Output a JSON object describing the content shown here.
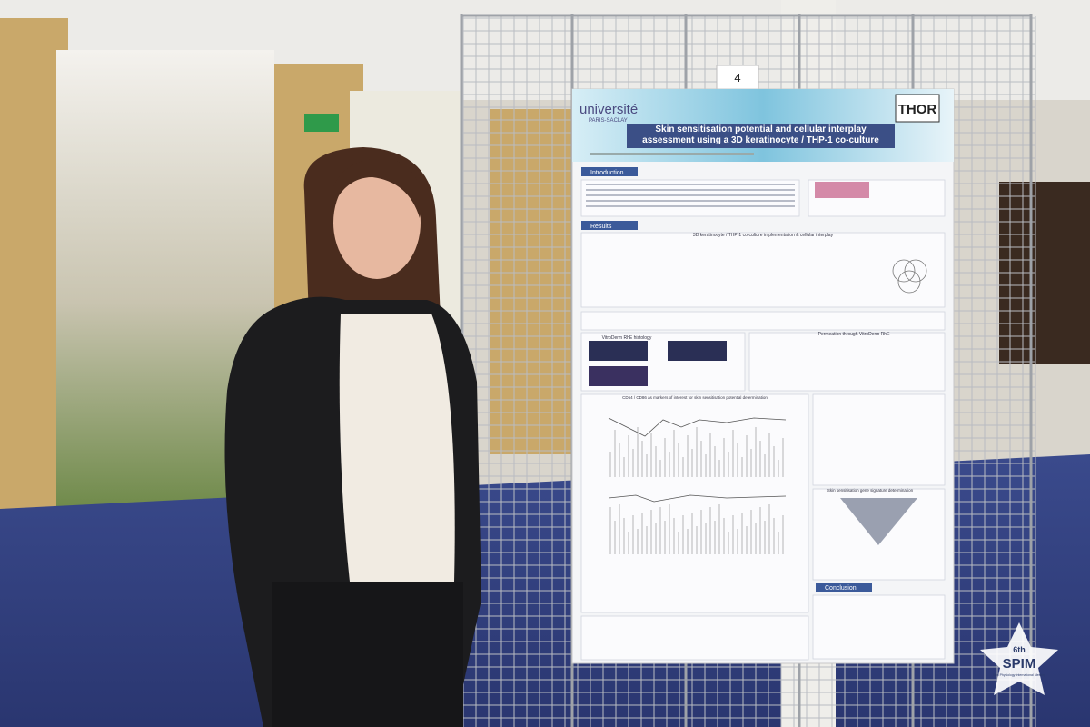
{
  "board_number": "4",
  "poster": {
    "logo_left": "université",
    "logo_left_sub": "PARIS-SACLAY",
    "logo_right": "THOR",
    "title": "Skin sensitisation potential and cellular interplay assessment using a 3D keratinocyte / THP-1 co-culture",
    "sections": [
      "Introduction",
      "Results",
      "Conclusion"
    ],
    "panel_titles": [
      "3D keratinocyte / THP-1 co-culture implementation & cellular interplay",
      "VitroDerm RhE histology",
      "Permeation through VitroDerm RhE",
      "CD54 / CD86 as markers of interest for skin sensitisation potential determination",
      "Skin sensitisation gene signature determination"
    ]
  },
  "event_logo": {
    "edition": "6th",
    "name": "SPIM",
    "full_name": "Skin Physiology International Meeting"
  }
}
